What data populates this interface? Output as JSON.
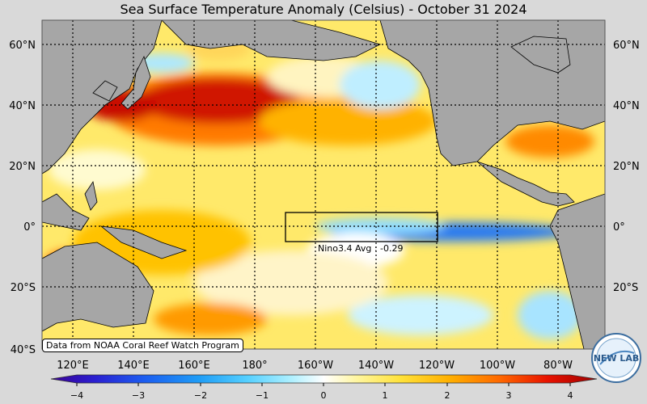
{
  "title": "Sea Surface Temperature Anomaly (Celsius) - October 31 2024",
  "lat_labels": [
    "60°N",
    "40°N",
    "20°N",
    "0°",
    "20°S",
    "40°S"
  ],
  "lon_labels": [
    "120°E",
    "140°E",
    "160°E",
    "180°",
    "160°W",
    "140°W",
    "120°W",
    "100°W",
    "80°W"
  ],
  "nino_label": "Nino3.4 Avg : -0.29",
  "credit": "Data from NOAA Coral Reef Watch Program",
  "logo_text": "NEW LAB",
  "colorbar": {
    "min": -4,
    "max": 4,
    "tick_labels": [
      "−4",
      "−3",
      "−2",
      "−1",
      "0",
      "1",
      "2",
      "3",
      "4"
    ],
    "colors": [
      "#3a0096",
      "#2b1fd0",
      "#1c5cf0",
      "#1e9cf6",
      "#55d0ff",
      "#aef0ff",
      "#ffffff",
      "#fff6a0",
      "#ffe23a",
      "#ffb000",
      "#ff6a00",
      "#e81200",
      "#9e0000"
    ]
  },
  "colors": {
    "land": "#a6a6a6",
    "ocean_base": "#ffe96a",
    "background": "#d9d9d9"
  }
}
